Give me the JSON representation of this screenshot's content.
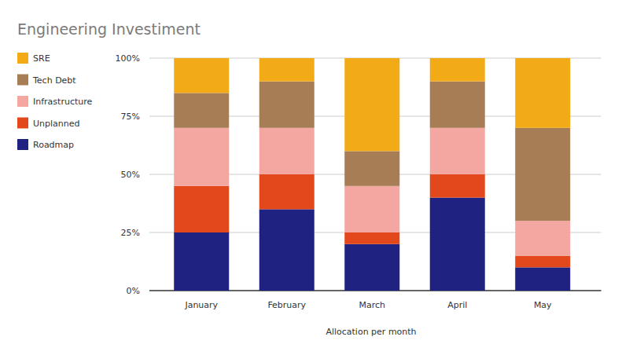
{
  "chart_data": {
    "type": "bar",
    "title": "Engineering Investiment",
    "x_label": "Allocation per month",
    "categories": [
      "January",
      "February",
      "March",
      "April",
      "May"
    ],
    "series": [
      {
        "name": "Roadmap",
        "color": "#1f2280",
        "values": [
          25,
          35,
          20,
          40,
          10
        ]
      },
      {
        "name": "Unplanned",
        "color": "#e2481b",
        "values": [
          20,
          15,
          5,
          10,
          5
        ]
      },
      {
        "name": "Infrastructure",
        "color": "#f4a7a0",
        "values": [
          25,
          20,
          20,
          20,
          15
        ]
      },
      {
        "name": "Tech Debt",
        "color": "#a67d55",
        "values": [
          15,
          20,
          15,
          20,
          40
        ]
      },
      {
        "name": "SRE",
        "color": "#f3aa17",
        "values": [
          15,
          10,
          40,
          10,
          30
        ]
      }
    ],
    "stacked": true,
    "ylim": [
      0,
      100
    ],
    "yticks": [
      {
        "value": 0,
        "label": "0%"
      },
      {
        "value": 25,
        "label": "25%"
      },
      {
        "value": 50,
        "label": "50%"
      },
      {
        "value": 75,
        "label": "75%"
      },
      {
        "value": 100,
        "label": "100%"
      }
    ],
    "grid": true,
    "legend": "top-left"
  }
}
